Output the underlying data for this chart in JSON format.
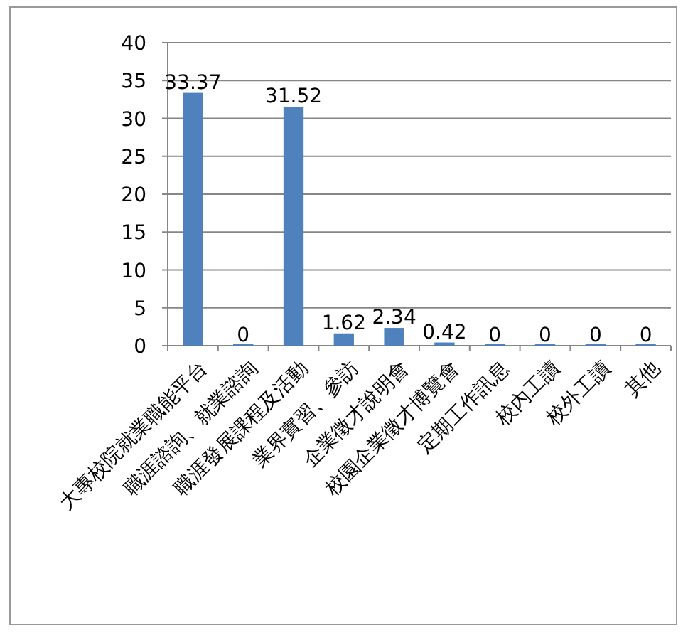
{
  "chart_data": {
    "type": "bar",
    "categories": [
      "大專校院就業職能平台",
      "職涯諮詢、就業諮詢",
      "職涯發展課程及活動",
      "業界實習、參訪",
      "企業徵才說明會",
      "校園企業徵才博覽會",
      "定期工作訊息",
      "校內工讀",
      "校外工讀",
      "其他"
    ],
    "values": [
      33.37,
      0,
      31.52,
      1.62,
      2.34,
      0.42,
      0,
      0,
      0,
      0
    ],
    "color": "#4f81bd",
    "ylim": [
      0,
      40
    ],
    "yticks": [
      0,
      5,
      10,
      15,
      20,
      25,
      30,
      35,
      40
    ],
    "grid": "y",
    "data_labels": true
  }
}
